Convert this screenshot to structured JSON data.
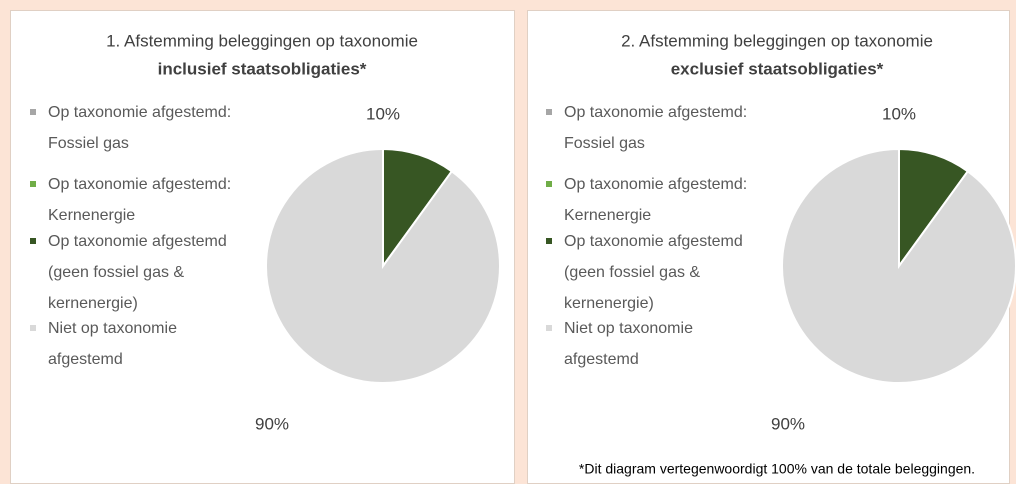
{
  "chart_data": [
    {
      "type": "pie",
      "title": "1. Afstemming beleggingen op taxonomie",
      "subtitle": "inclusief staatsobligaties*",
      "categories": [
        "Op taxonomie afgestemd: Fossiel gas",
        "Op taxonomie afgestemd: Kernenergie",
        "Op taxonomie afgestemd (geen fossiel gas & kernenergie)",
        "Niet op taxonomie afgestemd"
      ],
      "values": [
        0,
        0,
        10,
        90
      ],
      "value_labels": [
        null,
        null,
        "10%",
        "90%"
      ],
      "colors": [
        "#a6a6a6",
        "#70ad47",
        "#375623",
        "#d9d9d9"
      ],
      "legend": "left"
    },
    {
      "type": "pie",
      "title": "2. Afstemming beleggingen op taxonomie",
      "subtitle": "exclusief staatsobligaties*",
      "categories": [
        "Op taxonomie afgestemd: Fossiel gas",
        "Op taxonomie afgestemd: Kernenergie",
        "Op taxonomie afgestemd (geen fossiel gas & kernenergie)",
        "Niet op taxonomie afgestemd"
      ],
      "values": [
        0,
        0,
        10,
        90
      ],
      "value_labels": [
        null,
        null,
        "10%",
        "90%"
      ],
      "colors": [
        "#a6a6a6",
        "#70ad47",
        "#375623",
        "#d9d9d9"
      ],
      "legend": "left",
      "footnote": "*Dit diagram vertegenwoordigt 100% van de totale beleggingen."
    }
  ]
}
